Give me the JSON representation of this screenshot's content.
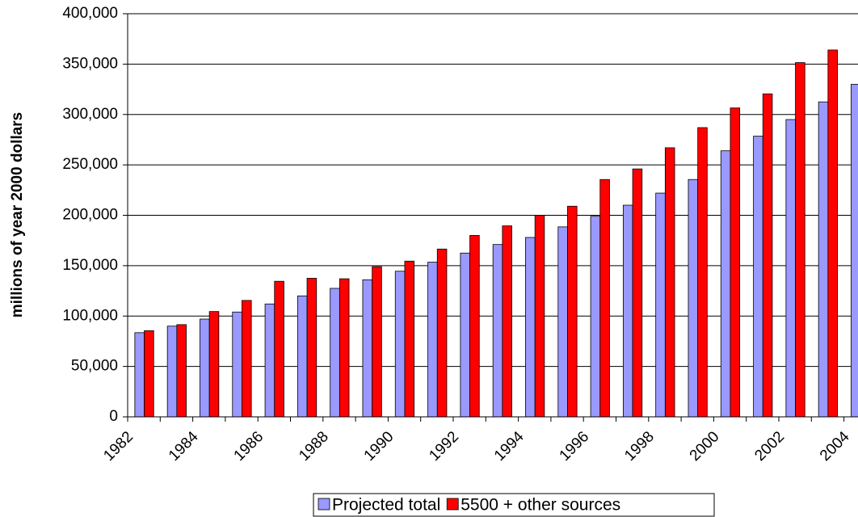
{
  "chart_data": {
    "type": "bar",
    "y_label": "millions of year 2000 dollars",
    "categories": [
      "1982",
      null,
      "1984",
      null,
      "1986",
      null,
      "1988",
      null,
      "1990",
      null,
      "1992",
      null,
      "1994",
      null,
      "1996",
      null,
      "1998",
      null,
      "2000",
      null,
      "2002",
      null,
      "2004"
    ],
    "series": [
      {
        "name": "Projected total",
        "color": "#9999ff",
        "values": [
          83500,
          90000,
          97000,
          104000,
          112000,
          120000,
          127500,
          136000,
          144500,
          153500,
          162500,
          171000,
          178000,
          188500,
          199000,
          210000,
          222000,
          235500,
          264000,
          278500,
          295000,
          312500,
          330000
        ]
      },
      {
        "name": "5500 + other sources",
        "color": "#ff0000",
        "values": [
          85500,
          91500,
          104500,
          115500,
          134500,
          137500,
          137000,
          149000,
          154500,
          166500,
          180000,
          189500,
          200000,
          209000,
          235500,
          246000,
          267000,
          287000,
          306500,
          320500,
          351500,
          364000,
          null
        ]
      }
    ],
    "ylim": [
      0,
      400000
    ],
    "yticks": [
      0,
      {
        "value": 50000,
        "label": "50,000"
      },
      {
        "value": 100000,
        "label": "100,000"
      },
      {
        "value": 150000,
        "label": "150,000"
      },
      {
        "value": 200000,
        "label": "200,000"
      },
      {
        "value": 250000,
        "label": "250,000"
      },
      {
        "value": 300000,
        "label": "300,000"
      },
      {
        "value": 350000,
        "label": "350,000"
      },
      {
        "value": 400000,
        "label": "400,000"
      }
    ],
    "grid": true,
    "legend": "bottom"
  }
}
